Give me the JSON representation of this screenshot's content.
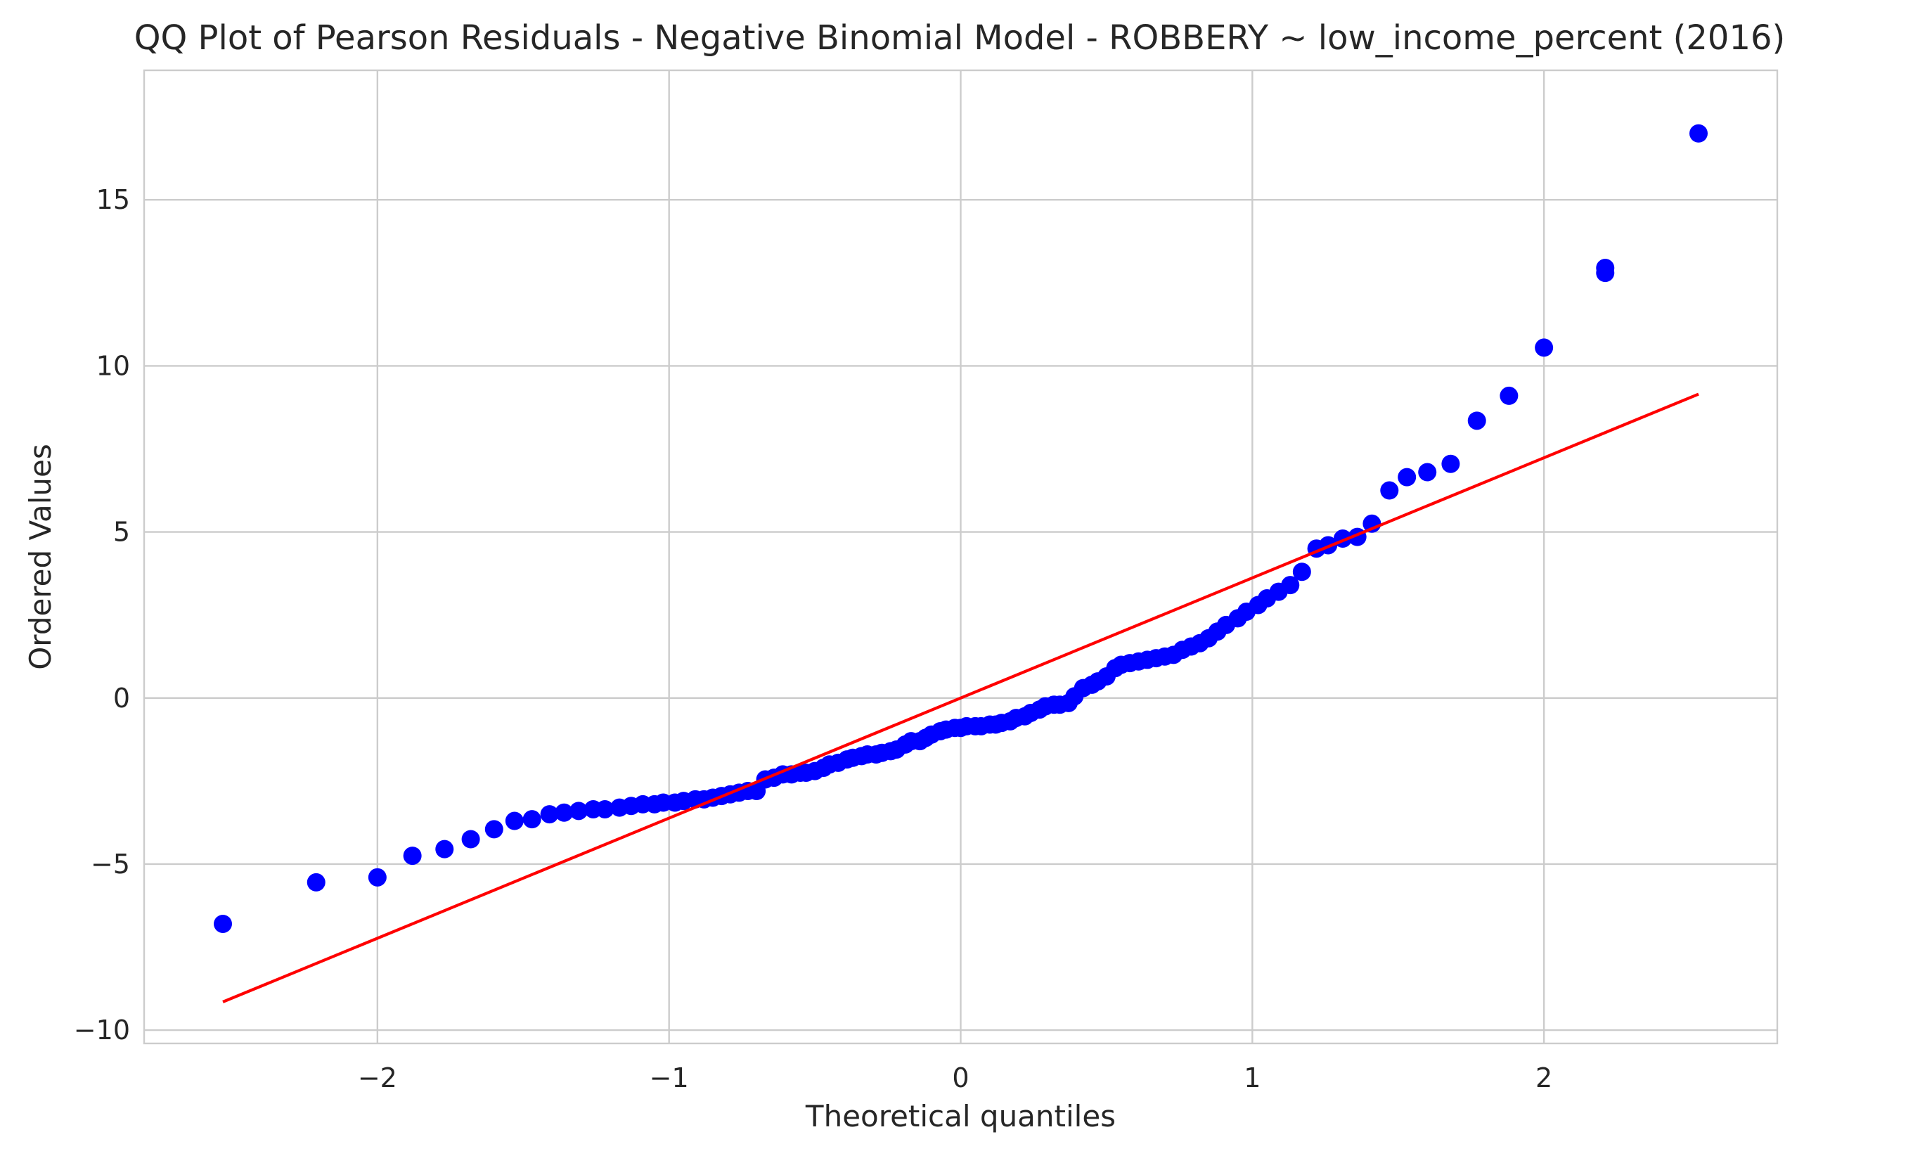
{
  "chart_data": {
    "type": "scatter",
    "title": "QQ Plot of Pearson Residuals - Negative Binomial Model - ROBBERY ~ low_income_percent (2016)",
    "xlabel": "Theoretical quantiles",
    "ylabel": "Ordered Values",
    "xlim": [
      -2.8,
      2.8
    ],
    "ylim": [
      -10.4,
      18.9
    ],
    "x_ticks": [
      -2,
      -1,
      0,
      1,
      2
    ],
    "x_tick_labels": [
      "−2",
      "−1",
      "0",
      "1",
      "2"
    ],
    "y_ticks": [
      -10,
      -5,
      0,
      5,
      10,
      15
    ],
    "y_tick_labels": [
      "−10",
      "−5",
      "0",
      "5",
      "10",
      "15"
    ],
    "grid": true,
    "point_color": "#0000ff",
    "line_color": "#ff0000",
    "points": [
      [
        -2.53,
        -6.8
      ],
      [
        -2.21,
        -5.55
      ],
      [
        -2.0,
        -5.4
      ],
      [
        -1.88,
        -4.75
      ],
      [
        -1.77,
        -4.55
      ],
      [
        -1.68,
        -4.25
      ],
      [
        -1.6,
        -3.95
      ],
      [
        -1.53,
        -3.7
      ],
      [
        -1.47,
        -3.65
      ],
      [
        -1.41,
        -3.5
      ],
      [
        -1.36,
        -3.45
      ],
      [
        -1.31,
        -3.4
      ],
      [
        -1.26,
        -3.35
      ],
      [
        -1.22,
        -3.35
      ],
      [
        -1.17,
        -3.3
      ],
      [
        -1.13,
        -3.25
      ],
      [
        -1.09,
        -3.2
      ],
      [
        -1.05,
        -3.2
      ],
      [
        -1.02,
        -3.15
      ],
      [
        -0.98,
        -3.15
      ],
      [
        -0.95,
        -3.1
      ],
      [
        -0.91,
        -3.05
      ],
      [
        -0.88,
        -3.05
      ],
      [
        -0.85,
        -3.0
      ],
      [
        -0.82,
        -2.95
      ],
      [
        -0.79,
        -2.9
      ],
      [
        -0.76,
        -2.85
      ],
      [
        -0.73,
        -2.8
      ],
      [
        -0.7,
        -2.8
      ],
      [
        -0.67,
        -2.45
      ],
      [
        -0.64,
        -2.4
      ],
      [
        -0.61,
        -2.3
      ],
      [
        -0.58,
        -2.3
      ],
      [
        -0.55,
        -2.25
      ],
      [
        -0.53,
        -2.25
      ],
      [
        -0.5,
        -2.2
      ],
      [
        -0.47,
        -2.1
      ],
      [
        -0.45,
        -2.0
      ],
      [
        -0.42,
        -1.95
      ],
      [
        -0.39,
        -1.85
      ],
      [
        -0.37,
        -1.8
      ],
      [
        -0.34,
        -1.75
      ],
      [
        -0.32,
        -1.7
      ],
      [
        -0.29,
        -1.7
      ],
      [
        -0.27,
        -1.65
      ],
      [
        -0.24,
        -1.6
      ],
      [
        -0.22,
        -1.55
      ],
      [
        -0.19,
        -1.4
      ],
      [
        -0.17,
        -1.3
      ],
      [
        -0.14,
        -1.3
      ],
      [
        -0.12,
        -1.2
      ],
      [
        -0.1,
        -1.1
      ],
      [
        -0.07,
        -1.0
      ],
      [
        -0.05,
        -0.95
      ],
      [
        -0.02,
        -0.9
      ],
      [
        0.0,
        -0.9
      ],
      [
        0.02,
        -0.85
      ],
      [
        0.05,
        -0.85
      ],
      [
        0.07,
        -0.85
      ],
      [
        0.1,
        -0.8
      ],
      [
        0.12,
        -0.8
      ],
      [
        0.14,
        -0.75
      ],
      [
        0.17,
        -0.7
      ],
      [
        0.19,
        -0.6
      ],
      [
        0.22,
        -0.55
      ],
      [
        0.24,
        -0.45
      ],
      [
        0.27,
        -0.35
      ],
      [
        0.29,
        -0.25
      ],
      [
        0.32,
        -0.2
      ],
      [
        0.34,
        -0.2
      ],
      [
        0.37,
        -0.15
      ],
      [
        0.39,
        0.05
      ],
      [
        0.42,
        0.3
      ],
      [
        0.45,
        0.4
      ],
      [
        0.47,
        0.5
      ],
      [
        0.5,
        0.65
      ],
      [
        0.53,
        0.9
      ],
      [
        0.55,
        1.0
      ],
      [
        0.58,
        1.05
      ],
      [
        0.61,
        1.1
      ],
      [
        0.64,
        1.15
      ],
      [
        0.67,
        1.2
      ],
      [
        0.7,
        1.25
      ],
      [
        0.73,
        1.3
      ],
      [
        0.76,
        1.45
      ],
      [
        0.79,
        1.55
      ],
      [
        0.82,
        1.65
      ],
      [
        0.85,
        1.8
      ],
      [
        0.88,
        2.0
      ],
      [
        0.91,
        2.2
      ],
      [
        0.95,
        2.4
      ],
      [
        0.98,
        2.6
      ],
      [
        1.02,
        2.8
      ],
      [
        1.05,
        3.0
      ],
      [
        1.09,
        3.2
      ],
      [
        1.13,
        3.4
      ],
      [
        1.17,
        3.8
      ],
      [
        1.22,
        4.5
      ],
      [
        1.26,
        4.6
      ],
      [
        1.31,
        4.8
      ],
      [
        1.36,
        4.85
      ],
      [
        1.41,
        5.25
      ],
      [
        1.47,
        6.25
      ],
      [
        1.53,
        6.65
      ],
      [
        1.6,
        6.8
      ],
      [
        1.68,
        7.05
      ],
      [
        1.77,
        8.35
      ],
      [
        1.88,
        9.1
      ],
      [
        2.0,
        10.55
      ],
      [
        2.21,
        12.8
      ],
      [
        2.21,
        12.95
      ],
      [
        2.53,
        17.0
      ]
    ],
    "fit_line": {
      "x": [
        -2.53,
        2.53
      ],
      "y": [
        -9.15,
        9.15
      ]
    }
  }
}
